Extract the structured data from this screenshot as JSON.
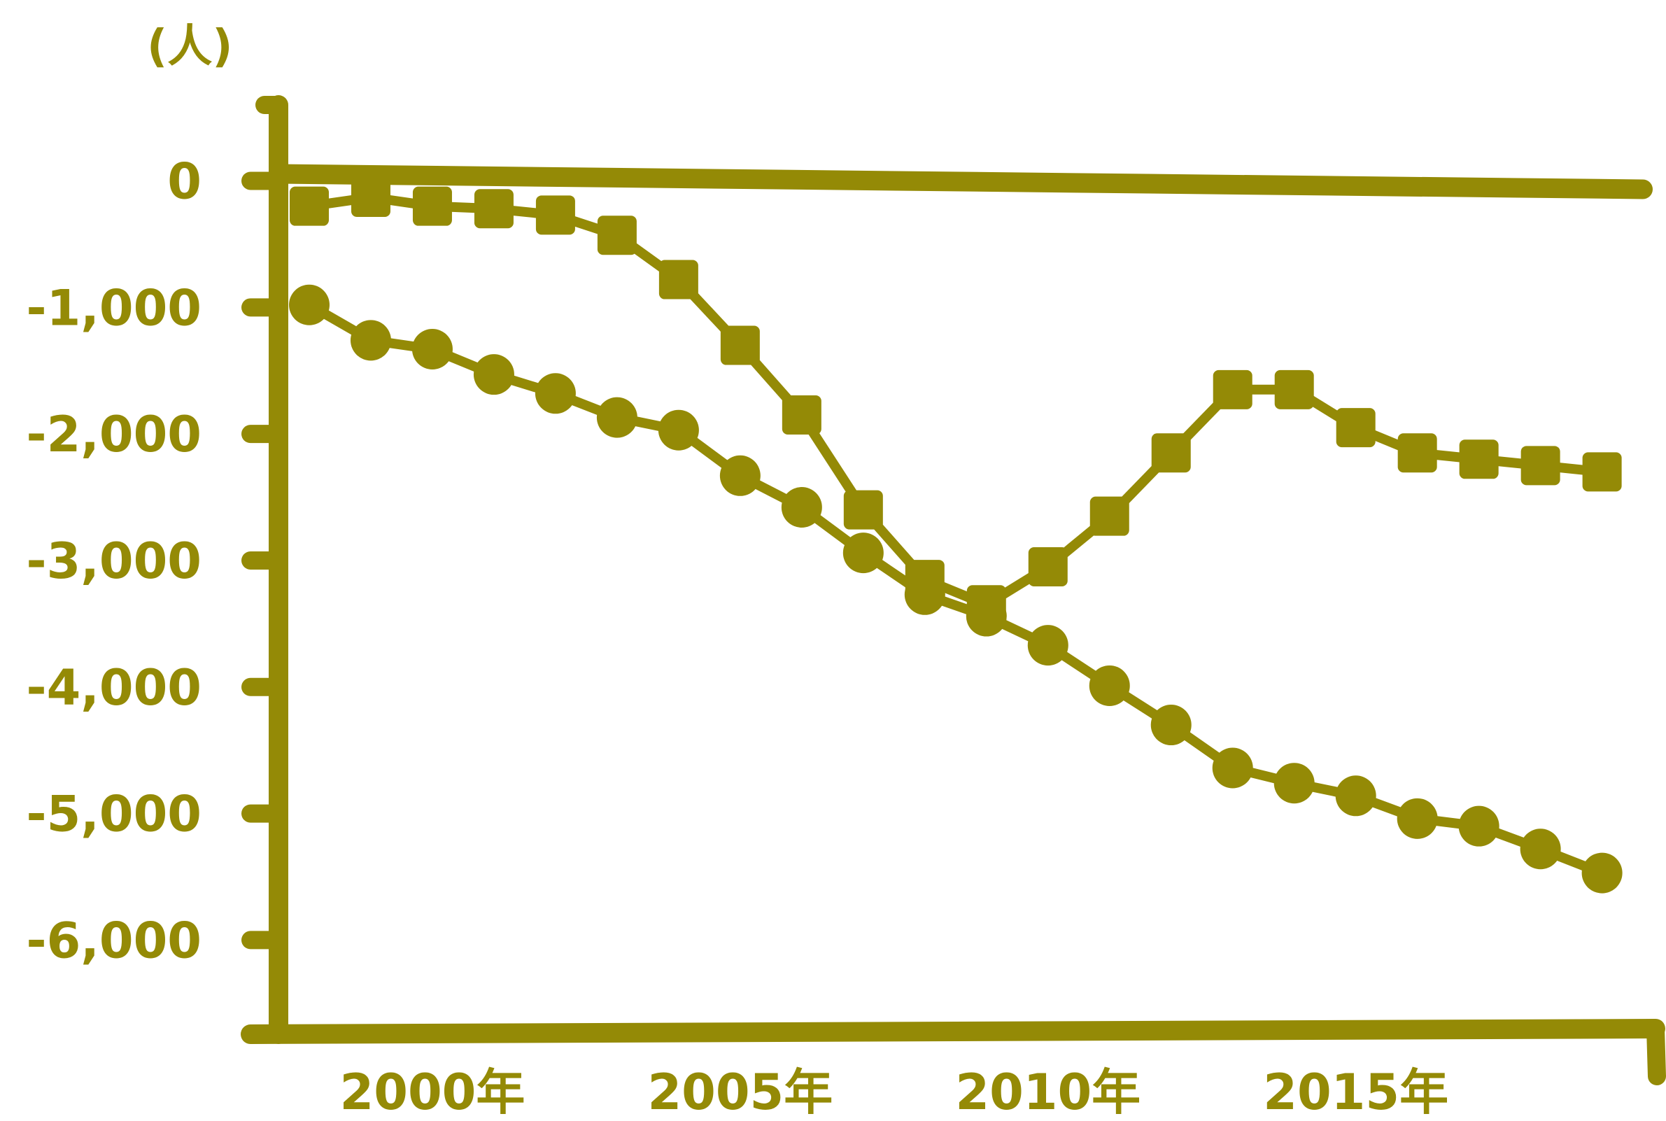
{
  "colors": {
    "ink": "#948a06",
    "background": "#ffffff"
  },
  "chart_data": {
    "type": "line",
    "title": "",
    "xlabel": "",
    "ylabel": "(人)",
    "ylim": [
      -6700,
      600
    ],
    "xlim": [
      1997.5,
      2019.8
    ],
    "x_ticks": [
      {
        "value": 2000,
        "label": "2000年"
      },
      {
        "value": 2005,
        "label": "2005年"
      },
      {
        "value": 2010,
        "label": "2010年"
      },
      {
        "value": 2015,
        "label": "2015年"
      }
    ],
    "y_ticks": [
      {
        "value": 0,
        "label": "0"
      },
      {
        "value": -1000,
        "label": "-1,000"
      },
      {
        "value": -2000,
        "label": "-2,000"
      },
      {
        "value": -3000,
        "label": "-3,000"
      },
      {
        "value": -4000,
        "label": "-4,000"
      },
      {
        "value": -5000,
        "label": "-5,000"
      },
      {
        "value": -6000,
        "label": "-6,000"
      }
    ],
    "grid": false,
    "legend": "none",
    "series": [
      {
        "marker": "square",
        "x": [
          1998,
          1999,
          2000,
          2001,
          2002,
          2003,
          2004,
          2005,
          2006,
          2007,
          2008,
          2009,
          2010,
          2011,
          2012,
          2013,
          2014,
          2015,
          2016,
          2017,
          2018,
          2019
        ],
        "values": [
          -200,
          -130,
          -200,
          -220,
          -270,
          -430,
          -780,
          -1300,
          -1850,
          -2600,
          -3150,
          -3350,
          -3050,
          -2650,
          -2150,
          -1650,
          -1650,
          -1950,
          -2150,
          -2200,
          -2250,
          -2300
        ]
      },
      {
        "marker": "circle",
        "x": [
          1998,
          1999,
          2000,
          2001,
          2002,
          2003,
          2004,
          2005,
          2006,
          2007,
          2008,
          2009,
          2010,
          2011,
          2012,
          2013,
          2014,
          2015,
          2016,
          2017,
          2018,
          2019
        ],
        "values": [
          -980,
          -1260,
          -1330,
          -1530,
          -1680,
          -1870,
          -1970,
          -2330,
          -2580,
          -2940,
          -3270,
          -3440,
          -3670,
          -3990,
          -4300,
          -4640,
          -4760,
          -4860,
          -5040,
          -5100,
          -5280,
          -5470
        ]
      }
    ]
  }
}
